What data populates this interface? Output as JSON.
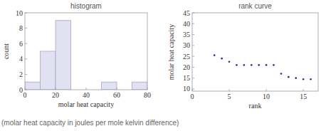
{
  "chart_data": [
    {
      "type": "histogram",
      "title": "histogram",
      "x_label": "molar heat capacity",
      "y_label": "count",
      "bins": [
        0,
        10,
        20,
        30,
        40,
        50,
        60,
        70,
        80
      ],
      "values": [
        1,
        5,
        9,
        0,
        0,
        1,
        0,
        1
      ],
      "color": "#e1e1f2",
      "xlim": [
        0,
        80
      ],
      "xticks": [
        0,
        20,
        40,
        60,
        80
      ],
      "ylim": [
        0,
        10
      ],
      "yticks": [
        0,
        2,
        4,
        6,
        8,
        10
      ],
      "grid": false
    },
    {
      "type": "scatter",
      "title": "rank curve",
      "x_label": "rank",
      "y_label": "molar heat capacity",
      "x": [
        3,
        4,
        5,
        6,
        7,
        8,
        9,
        10,
        11,
        12,
        13,
        14,
        15,
        16
      ],
      "values": [
        25.5,
        24,
        22.5,
        21,
        21,
        21,
        21,
        21,
        21,
        17,
        15.5,
        15,
        14.5,
        14.5
      ],
      "color": "#26308a",
      "marker": "dot",
      "xlim": [
        0,
        17
      ],
      "xticks": [
        0,
        5,
        10,
        15
      ],
      "ylim": [
        9,
        45
      ],
      "yticks": [
        10,
        15,
        20,
        25,
        30,
        35,
        40,
        45
      ],
      "grid": false
    }
  ],
  "caption": "(molar heat capacity in joules per mole kelvin difference)"
}
